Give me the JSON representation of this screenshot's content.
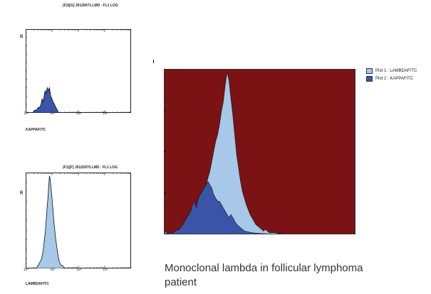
{
  "chart_data": [
    {
      "type": "area",
      "title": "(F2)[G] J0120071.LMD : FL1 LOG",
      "xlabel": "KAPPAFITC",
      "ylabel": "30",
      "x_scale": "log",
      "x_ticks": [
        "10⁰",
        "10¹",
        "10²",
        "10³"
      ],
      "xlim": [
        0.1,
        1000
      ],
      "ylim": [
        0,
        30
      ],
      "color": "#3a55a8",
      "series": [
        {
          "x": [
            0.18,
            0.22,
            0.26,
            0.3,
            0.34,
            0.38,
            0.42,
            0.46,
            0.5,
            0.55,
            0.6,
            0.66,
            0.72,
            0.8,
            0.9,
            1.0,
            1.1,
            1.25,
            1.4,
            1.6,
            1.8
          ],
          "values": [
            0,
            1,
            1,
            2,
            2,
            3,
            5,
            4,
            6,
            8,
            7,
            9,
            8,
            9,
            6,
            5,
            4,
            3,
            2,
            1,
            0
          ]
        }
      ]
    },
    {
      "type": "area",
      "title": "(F1)[F] J0120070.LMD : FL1 LOG",
      "xlabel": "LAMBDAFITC",
      "ylabel": "30",
      "x_scale": "log",
      "x_ticks": [
        "10⁰",
        "10¹",
        "10²",
        "10³"
      ],
      "xlim": [
        0.1,
        1000
      ],
      "ylim": [
        0,
        30
      ],
      "color": "#a7c8e8",
      "series": [
        {
          "x": [
            0.25,
            0.3,
            0.35,
            0.4,
            0.45,
            0.5,
            0.55,
            0.6,
            0.65,
            0.7,
            0.75,
            0.8,
            0.85,
            0.9,
            1.0,
            1.1,
            1.2,
            1.35,
            1.5,
            1.7,
            1.9,
            2.2,
            2.5,
            2.9
          ],
          "values": [
            0,
            1,
            2,
            3,
            5,
            8,
            11,
            15,
            19,
            22,
            26,
            29,
            28,
            26,
            22,
            18,
            14,
            10,
            7,
            4,
            2,
            1,
            1,
            0
          ]
        }
      ]
    },
    {
      "type": "area",
      "title": "",
      "xlim": [
        0,
        100
      ],
      "ylim": [
        0,
        100
      ],
      "background": "#7b1214",
      "legend_position": "top-right",
      "series": [
        {
          "name": "Plot 1 : LAMBDAFITC",
          "color": "#a7c8e8",
          "x": [
            0,
            1,
            2,
            3,
            4,
            5,
            6,
            7,
            8,
            9,
            10,
            11,
            12,
            13,
            14,
            15,
            16,
            17,
            18,
            19,
            20,
            21,
            22,
            23,
            24,
            25,
            26,
            27,
            28,
            29,
            30,
            31,
            32,
            33,
            34,
            35,
            36,
            37,
            38,
            39,
            40,
            41,
            42,
            43,
            44,
            45,
            46,
            47,
            48,
            49,
            50,
            51,
            52,
            53,
            54,
            55,
            56,
            58,
            60,
            62,
            64,
            68,
            72,
            80,
            90,
            100
          ],
          "values": [
            0,
            2,
            0,
            0,
            1,
            0,
            1,
            2,
            1,
            3,
            2,
            4,
            5,
            6,
            8,
            10,
            12,
            16,
            20,
            24,
            26,
            28,
            30,
            34,
            38,
            44,
            50,
            56,
            60,
            66,
            74,
            80,
            90,
            98,
            93,
            82,
            72,
            60,
            48,
            40,
            32,
            26,
            22,
            18,
            15,
            12,
            10,
            8,
            6,
            5,
            4,
            3,
            2,
            3,
            2,
            1,
            1,
            1,
            0.5,
            0.5,
            0.2,
            0,
            0,
            0,
            0,
            0
          ]
        },
        {
          "name": "Plot 2 : KAPPAFITC",
          "color": "#3a55a8",
          "x": [
            0,
            2,
            4,
            6,
            8,
            10,
            12,
            14,
            15,
            16,
            17,
            18,
            19,
            20,
            21,
            22,
            23,
            24,
            25,
            26,
            27,
            28,
            29,
            30,
            31,
            32,
            33,
            34,
            35,
            36,
            37,
            38,
            39,
            40,
            41,
            42,
            44,
            46,
            50,
            60,
            100
          ],
          "values": [
            0,
            1,
            0,
            2,
            3,
            6,
            10,
            14,
            18,
            20,
            16,
            22,
            24,
            26,
            28,
            30,
            32,
            30,
            28,
            24,
            22,
            20,
            20,
            18,
            16,
            14,
            12,
            10,
            12,
            10,
            8,
            6,
            5,
            4,
            3,
            2,
            1.5,
            1,
            0.5,
            0,
            0
          ]
        }
      ]
    }
  ],
  "caption": "Monoclonal lambda in follicular lymphoma patient"
}
